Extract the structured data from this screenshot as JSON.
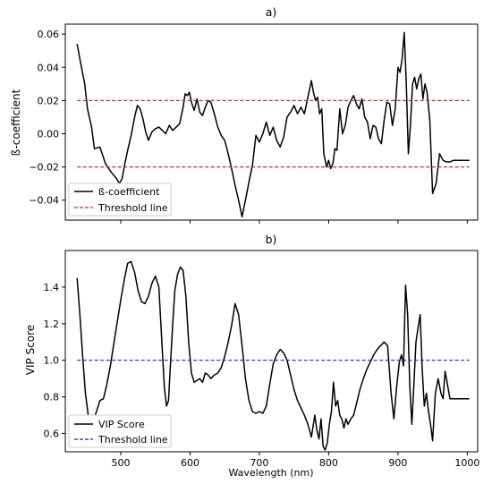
{
  "chart_data": [
    {
      "type": "line",
      "title": "a)",
      "xlabel": "",
      "ylabel": "ß-coefficient",
      "xlim": [
        420,
        1015
      ],
      "ylim": [
        -0.052,
        0.066
      ],
      "xticks": [
        500,
        600,
        700,
        800,
        900,
        1000
      ],
      "xtick_labels": [
        "",
        "",
        "",
        "",
        "",
        ""
      ],
      "yticks": [
        -0.04,
        -0.02,
        0.0,
        0.02,
        0.04,
        0.06
      ],
      "ytick_labels": [
        "−0.04",
        "−0.02",
        "0.00",
        "0.02",
        "0.04",
        "0.06"
      ],
      "legend_position": "lower-left",
      "series": [
        {
          "name": "ß-coefficient",
          "color": "#000000",
          "style": "solid",
          "x": [
            437,
            442,
            448,
            452,
            458,
            462,
            470,
            478,
            486,
            494,
            498,
            502,
            506,
            510,
            515,
            520,
            524,
            528,
            532,
            536,
            540,
            545,
            550,
            555,
            560,
            565,
            570,
            575,
            580,
            585,
            590,
            593,
            596,
            599,
            602,
            606,
            610,
            614,
            618,
            622,
            626,
            630,
            635,
            640,
            645,
            650,
            655,
            660,
            665,
            670,
            675,
            680,
            685,
            690,
            695,
            700,
            705,
            710,
            715,
            720,
            725,
            730,
            735,
            740,
            745,
            750,
            755,
            760,
            765,
            770,
            775,
            778,
            781,
            784,
            787,
            790,
            793,
            797,
            800,
            803,
            806,
            809,
            812,
            816,
            820,
            824,
            828,
            832,
            836,
            840,
            844,
            848,
            852,
            856,
            860,
            864,
            868,
            872,
            876,
            880,
            884,
            888,
            892,
            896,
            900,
            903,
            906,
            909,
            912,
            915,
            918,
            921,
            924,
            927,
            930,
            933,
            936,
            939,
            942,
            946,
            950,
            955,
            960,
            965,
            970,
            975,
            980,
            985,
            990,
            995,
            1003
          ],
          "y": [
            0.054,
            0.043,
            0.03,
            0.015,
            0.004,
            -0.009,
            -0.008,
            -0.018,
            -0.023,
            -0.027,
            -0.03,
            -0.027,
            -0.018,
            -0.01,
            -0.001,
            0.01,
            0.017,
            0.015,
            0.009,
            0.001,
            -0.004,
            0.001,
            0.003,
            0.004,
            0.002,
            0.0,
            0.005,
            0.002,
            0.004,
            0.006,
            0.016,
            0.024,
            0.023,
            0.025,
            0.019,
            0.014,
            0.021,
            0.013,
            0.011,
            0.016,
            0.02,
            0.019,
            0.012,
            0.004,
            -0.001,
            -0.004,
            -0.012,
            -0.021,
            -0.031,
            -0.04,
            -0.05,
            -0.04,
            -0.029,
            -0.019,
            -0.001,
            -0.005,
            0.0,
            0.007,
            -0.001,
            0.004,
            -0.004,
            -0.008,
            -0.002,
            0.01,
            0.013,
            0.017,
            0.012,
            0.016,
            0.012,
            0.022,
            0.032,
            0.025,
            0.02,
            0.022,
            0.012,
            0.015,
            -0.012,
            -0.02,
            -0.016,
            -0.021,
            -0.018,
            -0.009,
            -0.01,
            0.015,
            0.0,
            0.005,
            0.016,
            0.02,
            0.023,
            0.018,
            0.015,
            0.021,
            0.01,
            0.007,
            -0.003,
            0.005,
            0.004,
            -0.003,
            -0.006,
            0.008,
            0.019,
            0.018,
            0.005,
            0.015,
            0.04,
            0.037,
            0.045,
            0.061,
            0.03,
            -0.012,
            0.005,
            0.03,
            0.034,
            0.027,
            0.033,
            0.036,
            0.021,
            0.03,
            0.025,
            0.008,
            -0.036,
            -0.03,
            -0.012,
            -0.016,
            -0.017,
            -0.017,
            -0.016,
            -0.016,
            -0.016,
            -0.016,
            -0.016
          ]
        },
        {
          "name": "Threshold line",
          "color": "#d62728",
          "style": "dashed",
          "x": [
            437,
            1003
          ],
          "y": [
            0.02,
            0.02
          ]
        },
        {
          "name": "",
          "color": "#d62728",
          "style": "dashed",
          "x": [
            437,
            1003
          ],
          "y": [
            -0.02,
            -0.02
          ]
        }
      ]
    },
    {
      "type": "line",
      "title": "b)",
      "xlabel": "Wavelength (nm)",
      "ylabel": "VIP Score",
      "xlim": [
        420,
        1015
      ],
      "ylim": [
        0.5,
        1.6
      ],
      "xticks": [
        500,
        600,
        700,
        800,
        900,
        1000
      ],
      "xtick_labels": [
        "500",
        "600",
        "700",
        "800",
        "900",
        "1000"
      ],
      "yticks": [
        0.6,
        0.8,
        1.0,
        1.2,
        1.4
      ],
      "ytick_labels": [
        "0.6",
        "0.8",
        "1.0",
        "1.2",
        "1.4"
      ],
      "legend_position": "lower-left",
      "series": [
        {
          "name": "VIP Score",
          "color": "#000000",
          "style": "solid",
          "x": [
            437,
            441,
            445,
            449,
            453,
            457,
            461,
            465,
            470,
            475,
            480,
            485,
            490,
            495,
            500,
            505,
            510,
            515,
            520,
            525,
            530,
            535,
            540,
            545,
            550,
            555,
            560,
            563,
            566,
            569,
            572,
            575,
            578,
            582,
            586,
            590,
            594,
            598,
            602,
            606,
            610,
            614,
            618,
            622,
            626,
            630,
            635,
            640,
            645,
            650,
            655,
            660,
            665,
            670,
            675,
            680,
            685,
            690,
            695,
            700,
            705,
            710,
            715,
            720,
            725,
            730,
            735,
            740,
            745,
            750,
            755,
            760,
            765,
            770,
            775,
            780,
            783,
            786,
            789,
            792,
            795,
            798,
            801,
            804,
            807,
            810,
            813,
            816,
            819,
            822,
            825,
            828,
            832,
            836,
            840,
            845,
            850,
            855,
            860,
            865,
            870,
            875,
            880,
            885,
            890,
            894,
            898,
            902,
            905,
            908,
            911,
            914,
            917,
            920,
            923,
            926,
            929,
            932,
            935,
            938,
            941,
            944,
            947,
            950,
            954,
            958,
            962,
            965,
            968,
            975,
            985,
            995,
            1003
          ],
          "y": [
            1.45,
            1.25,
            1.02,
            0.82,
            0.7,
            0.66,
            0.68,
            0.72,
            0.78,
            0.79,
            0.87,
            0.97,
            1.09,
            1.21,
            1.33,
            1.44,
            1.53,
            1.54,
            1.48,
            1.38,
            1.32,
            1.31,
            1.35,
            1.42,
            1.46,
            1.4,
            1.05,
            0.85,
            0.75,
            0.78,
            1.0,
            1.2,
            1.38,
            1.47,
            1.51,
            1.49,
            1.35,
            1.1,
            0.93,
            0.88,
            0.89,
            0.9,
            0.88,
            0.93,
            0.92,
            0.9,
            0.92,
            0.93,
            0.96,
            1.02,
            1.1,
            1.19,
            1.31,
            1.25,
            1.08,
            0.9,
            0.78,
            0.72,
            0.71,
            0.72,
            0.71,
            0.75,
            0.87,
            0.98,
            1.03,
            1.06,
            1.04,
            1.0,
            0.92,
            0.84,
            0.78,
            0.74,
            0.7,
            0.65,
            0.58,
            0.7,
            0.62,
            0.57,
            0.68,
            0.53,
            0.51,
            0.55,
            0.65,
            0.72,
            0.88,
            0.75,
            0.78,
            0.7,
            0.68,
            0.63,
            0.68,
            0.65,
            0.68,
            0.7,
            0.76,
            0.84,
            0.9,
            0.95,
            0.99,
            1.03,
            1.06,
            1.08,
            1.1,
            1.08,
            0.82,
            0.68,
            0.85,
            0.99,
            1.03,
            0.97,
            1.41,
            1.25,
            0.86,
            0.65,
            0.87,
            1.1,
            1.18,
            1.25,
            0.95,
            0.75,
            0.82,
            0.72,
            0.65,
            0.56,
            0.82,
            0.9,
            0.82,
            0.79,
            0.94,
            0.79,
            0.79,
            0.79,
            0.79
          ]
        },
        {
          "name": "Threshold line",
          "color": "#1f1fb4",
          "style": "dashed",
          "x": [
            437,
            1003
          ],
          "y": [
            1.0,
            1.0
          ]
        }
      ]
    }
  ]
}
